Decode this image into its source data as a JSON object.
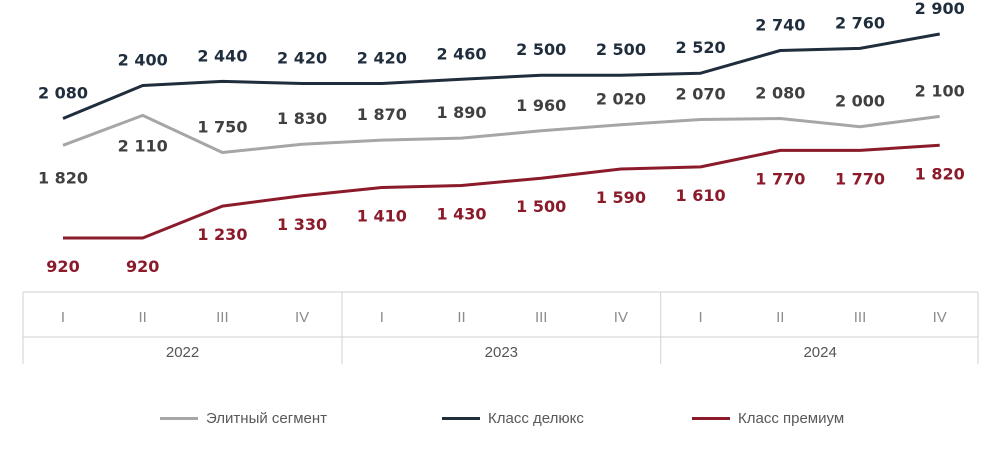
{
  "chart_data": {
    "type": "line",
    "categories": [
      "I",
      "II",
      "III",
      "IV",
      "I",
      "II",
      "III",
      "IV",
      "I",
      "II",
      "III",
      "IV"
    ],
    "groups": [
      {
        "label": "2022",
        "span": 4
      },
      {
        "label": "2023",
        "span": 4
      },
      {
        "label": "2024",
        "span": 4
      }
    ],
    "series": [
      {
        "name": "Элитный сегмент",
        "color": "#a6a6a6",
        "values": [
          1820,
          2110,
          1750,
          1830,
          1870,
          1890,
          1960,
          2020,
          2070,
          2080,
          2000,
          2100
        ],
        "labels": [
          "1 820",
          "2 110",
          "1 750",
          "1 830",
          "1 870",
          "1 890",
          "1 960",
          "2 020",
          "2 070",
          "2 080",
          "2 000",
          "2 100"
        ],
        "label_color": "#404040"
      },
      {
        "name": "Класс делюкс",
        "color": "#1f2d3d",
        "values": [
          2080,
          2400,
          2440,
          2420,
          2420,
          2460,
          2500,
          2500,
          2520,
          2740,
          2760,
          2900
        ],
        "labels": [
          "2 080",
          "2 400",
          "2 440",
          "2 420",
          "2 420",
          "2 460",
          "2 500",
          "2 500",
          "2 520",
          "2 740",
          "2 760",
          "2 900"
        ],
        "label_color": "#1f2d3d"
      },
      {
        "name": "Класс премиум",
        "color": "#8b1a2b",
        "values": [
          920,
          920,
          1230,
          1330,
          1410,
          1430,
          1500,
          1590,
          1610,
          1770,
          1770,
          1820
        ],
        "labels": [
          "920",
          "920",
          "1 230",
          "1 330",
          "1 410",
          "1 430",
          "1 500",
          "1 590",
          "1 610",
          "1 770",
          "1 770",
          "1 820"
        ],
        "label_color": "#8b1a2b"
      }
    ],
    "gridlines": false,
    "legend_position": "bottom"
  }
}
